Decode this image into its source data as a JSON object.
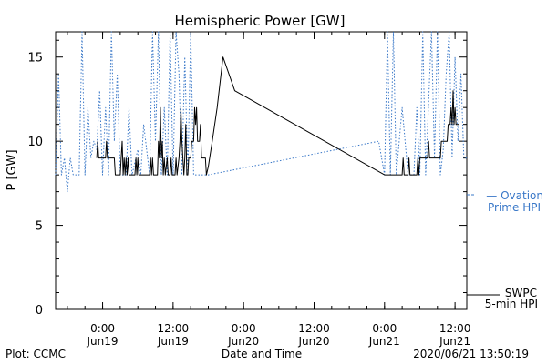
{
  "chart_data": {
    "type": "line",
    "title": "Hemispheric Power [GW]",
    "xlabel": "Date and Time",
    "ylabel": "P [GW]",
    "ylim": [
      0,
      16.5
    ],
    "xlim": [
      "2020-06-18T16:00",
      "2020-06-21T14:00"
    ],
    "y_ticks": [
      0,
      5,
      10,
      15
    ],
    "x_ticks": [
      {
        "at": "2020-06-19T00:00",
        "line1": "0:00",
        "line2": "Jun19"
      },
      {
        "at": "2020-06-19T12:00",
        "line1": "12:00",
        "line2": "Jun19"
      },
      {
        "at": "2020-06-20T00:00",
        "line1": "0:00",
        "line2": "Jun20"
      },
      {
        "at": "2020-06-20T12:00",
        "line1": "12:00",
        "line2": "Jun20"
      },
      {
        "at": "2020-06-21T00:00",
        "line1": "0:00",
        "line2": "Jun21"
      },
      {
        "at": "2020-06-21T12:00",
        "line1": "12:00",
        "line2": "Jun21"
      }
    ],
    "grid": false,
    "legend_placement": "right",
    "series": [
      {
        "name": "Ovation Prime HPI",
        "legend_line1": "— Ovation",
        "legend_line2": "Prime HPI",
        "color": "#3a78c8",
        "style": "dotted",
        "points": [
          [
            "2020-06-18T16:00",
            8.0
          ],
          [
            "2020-06-18T16:30",
            14.0
          ],
          [
            "2020-06-18T17:00",
            8.0
          ],
          [
            "2020-06-18T17:30",
            9.0
          ],
          [
            "2020-06-18T18:00",
            7.0
          ],
          [
            "2020-06-18T18:30",
            9.0
          ],
          [
            "2020-06-18T19:00",
            8.0
          ],
          [
            "2020-06-18T20:00",
            8.0
          ],
          [
            "2020-06-18T20:30",
            16.5
          ],
          [
            "2020-06-18T21:00",
            8.0
          ],
          [
            "2020-06-18T21:30",
            12.0
          ],
          [
            "2020-06-18T22:00",
            9.0
          ],
          [
            "2020-06-18T22:30",
            10.0
          ],
          [
            "2020-06-18T23:00",
            9.5
          ],
          [
            "2020-06-18T23:30",
            13.0
          ],
          [
            "2020-06-19T00:00",
            8.0
          ],
          [
            "2020-06-19T00:30",
            12.0
          ],
          [
            "2020-06-19T01:00",
            8.0
          ],
          [
            "2020-06-19T01:30",
            16.5
          ],
          [
            "2020-06-19T02:00",
            10.0
          ],
          [
            "2020-06-19T02:30",
            14.0
          ],
          [
            "2020-06-19T03:00",
            8.0
          ],
          [
            "2020-06-19T04:00",
            8.0
          ],
          [
            "2020-06-19T04:30",
            12.0
          ],
          [
            "2020-06-19T05:00",
            8.0
          ],
          [
            "2020-06-19T06:00",
            9.5
          ],
          [
            "2020-06-19T06:30",
            8.0
          ],
          [
            "2020-06-19T07:00",
            11.0
          ],
          [
            "2020-06-19T08:00",
            8.0
          ],
          [
            "2020-06-19T08:30",
            16.5
          ],
          [
            "2020-06-19T09:00",
            10.0
          ],
          [
            "2020-06-19T09:30",
            16.5
          ],
          [
            "2020-06-19T10:00",
            8.0
          ],
          [
            "2020-06-19T10:30",
            12.0
          ],
          [
            "2020-06-19T11:00",
            8.0
          ],
          [
            "2020-06-19T11:30",
            16.5
          ],
          [
            "2020-06-19T12:00",
            8.0
          ],
          [
            "2020-06-19T12:30",
            16.5
          ],
          [
            "2020-06-19T13:00",
            14.0
          ],
          [
            "2020-06-19T13:30",
            8.0
          ],
          [
            "2020-06-19T14:00",
            15.0
          ],
          [
            "2020-06-19T14:30",
            8.0
          ],
          [
            "2020-06-19T15:00",
            16.5
          ],
          [
            "2020-06-19T15:30",
            8.0
          ],
          [
            "2020-06-19T16:00",
            8.0
          ],
          [
            "2020-06-19T17:00",
            8.0
          ],
          [
            "2020-06-19T18:00",
            8.0
          ],
          [
            "2020-06-20T23:00",
            10.0
          ],
          [
            "2020-06-21T00:00",
            8.0
          ],
          [
            "2020-06-21T00:30",
            16.5
          ],
          [
            "2020-06-21T01:00",
            8.0
          ],
          [
            "2020-06-21T01:30",
            16.5
          ],
          [
            "2020-06-21T02:00",
            8.0
          ],
          [
            "2020-06-21T03:00",
            12.0
          ],
          [
            "2020-06-21T04:00",
            8.0
          ],
          [
            "2020-06-21T05:00",
            8.0
          ],
          [
            "2020-06-21T05:30",
            12.0
          ],
          [
            "2020-06-21T06:00",
            8.0
          ],
          [
            "2020-06-21T06:30",
            16.5
          ],
          [
            "2020-06-21T07:00",
            8.0
          ],
          [
            "2020-06-21T08:00",
            16.5
          ],
          [
            "2020-06-21T08:30",
            9.0
          ],
          [
            "2020-06-21T09:00",
            16.5
          ],
          [
            "2020-06-21T09:30",
            8.0
          ],
          [
            "2020-06-21T10:00",
            9.5
          ],
          [
            "2020-06-21T10:30",
            14.0
          ],
          [
            "2020-06-21T11:00",
            16.5
          ],
          [
            "2020-06-21T11:30",
            9.0
          ],
          [
            "2020-06-21T12:00",
            15.0
          ],
          [
            "2020-06-21T12:30",
            10.0
          ],
          [
            "2020-06-21T13:00",
            14.0
          ],
          [
            "2020-06-21T13:30",
            9.0
          ],
          [
            "2020-06-21T14:00",
            9.0
          ]
        ]
      },
      {
        "name": "SWPC 5-min HPI",
        "legend_line1": "SWPC",
        "legend_line2": "5-min HPI",
        "color": "#000000",
        "style": "solid",
        "points": [
          [
            "2020-06-18T23:00",
            9.0
          ],
          [
            "2020-06-18T23:10",
            10.0
          ],
          [
            "2020-06-18T23:20",
            9.0
          ],
          [
            "2020-06-19T00:30",
            9.0
          ],
          [
            "2020-06-19T00:40",
            10.0
          ],
          [
            "2020-06-19T00:50",
            9.0
          ],
          [
            "2020-06-19T02:00",
            9.0
          ],
          [
            "2020-06-19T02:10",
            8.0
          ],
          [
            "2020-06-19T03:00",
            8.0
          ],
          [
            "2020-06-19T03:10",
            9.0
          ],
          [
            "2020-06-19T03:20",
            10.0
          ],
          [
            "2020-06-19T03:30",
            8.0
          ],
          [
            "2020-06-19T03:40",
            9.0
          ],
          [
            "2020-06-19T03:50",
            8.0
          ],
          [
            "2020-06-19T04:00",
            9.0
          ],
          [
            "2020-06-19T04:10",
            8.0
          ],
          [
            "2020-06-19T04:20",
            9.0
          ],
          [
            "2020-06-19T04:30",
            8.0
          ],
          [
            "2020-06-19T05:30",
            8.0
          ],
          [
            "2020-06-19T05:40",
            9.0
          ],
          [
            "2020-06-19T05:50",
            8.0
          ],
          [
            "2020-06-19T06:00",
            9.0
          ],
          [
            "2020-06-19T06:10",
            8.0
          ],
          [
            "2020-06-19T08:00",
            8.0
          ],
          [
            "2020-06-19T08:10",
            9.0
          ],
          [
            "2020-06-19T08:20",
            8.0
          ],
          [
            "2020-06-19T08:30",
            9.0
          ],
          [
            "2020-06-19T08:40",
            8.0
          ],
          [
            "2020-06-19T09:20",
            8.0
          ],
          [
            "2020-06-19T09:30",
            10.0
          ],
          [
            "2020-06-19T09:40",
            9.0
          ],
          [
            "2020-06-19T09:50",
            12.0
          ],
          [
            "2020-06-19T10:00",
            9.0
          ],
          [
            "2020-06-19T10:10",
            10.0
          ],
          [
            "2020-06-19T10:20",
            8.0
          ],
          [
            "2020-06-19T10:30",
            9.0
          ],
          [
            "2020-06-19T10:40",
            8.0
          ],
          [
            "2020-06-19T11:00",
            9.0
          ],
          [
            "2020-06-19T11:10",
            8.0
          ],
          [
            "2020-06-19T11:30",
            8.0
          ],
          [
            "2020-06-19T11:40",
            9.0
          ],
          [
            "2020-06-19T11:50",
            8.0
          ],
          [
            "2020-06-19T12:20",
            8.0
          ],
          [
            "2020-06-19T12:30",
            9.0
          ],
          [
            "2020-06-19T12:40",
            8.0
          ],
          [
            "2020-06-19T13:00",
            9.0
          ],
          [
            "2020-06-19T13:10",
            10.0
          ],
          [
            "2020-06-19T13:20",
            12.0
          ],
          [
            "2020-06-19T13:30",
            10.0
          ],
          [
            "2020-06-19T13:40",
            9.0
          ],
          [
            "2020-06-19T13:50",
            8.0
          ],
          [
            "2020-06-19T14:00",
            9.0
          ],
          [
            "2020-06-19T14:10",
            11.0
          ],
          [
            "2020-06-19T14:20",
            8.0
          ],
          [
            "2020-06-19T14:30",
            8.0
          ],
          [
            "2020-06-19T14:40",
            9.0
          ],
          [
            "2020-06-19T15:00",
            9.0
          ],
          [
            "2020-06-19T15:10",
            10.0
          ],
          [
            "2020-06-19T15:30",
            10.0
          ],
          [
            "2020-06-19T15:40",
            12.0
          ],
          [
            "2020-06-19T15:50",
            11.0
          ],
          [
            "2020-06-19T16:00",
            12.0
          ],
          [
            "2020-06-19T16:10",
            10.0
          ],
          [
            "2020-06-19T16:30",
            10.0
          ],
          [
            "2020-06-19T16:40",
            11.0
          ],
          [
            "2020-06-19T16:50",
            9.0
          ],
          [
            "2020-06-19T17:30",
            9.0
          ],
          [
            "2020-06-19T17:40",
            8.0
          ],
          [
            "2020-06-19T18:00",
            8.5
          ],
          [
            "2020-06-19T18:40",
            10.0
          ],
          [
            "2020-06-19T19:30",
            12.0
          ],
          [
            "2020-06-19T20:30",
            15.0
          ],
          [
            "2020-06-19T22:30",
            13.0
          ],
          [
            "2020-06-21T00:00",
            8.0
          ],
          [
            "2020-06-21T03:00",
            8.0
          ],
          [
            "2020-06-21T03:10",
            9.0
          ],
          [
            "2020-06-21T03:20",
            8.0
          ],
          [
            "2020-06-21T04:00",
            8.0
          ],
          [
            "2020-06-21T04:10",
            9.0
          ],
          [
            "2020-06-21T04:20",
            8.0
          ],
          [
            "2020-06-21T05:30",
            8.0
          ],
          [
            "2020-06-21T05:40",
            9.0
          ],
          [
            "2020-06-21T05:50",
            8.0
          ],
          [
            "2020-06-21T06:00",
            9.0
          ],
          [
            "2020-06-21T07:20",
            9.0
          ],
          [
            "2020-06-21T07:30",
            10.0
          ],
          [
            "2020-06-21T07:40",
            9.0
          ],
          [
            "2020-06-21T09:30",
            9.0
          ],
          [
            "2020-06-21T09:40",
            10.0
          ],
          [
            "2020-06-21T10:40",
            10.0
          ],
          [
            "2020-06-21T10:50",
            11.0
          ],
          [
            "2020-06-21T11:10",
            11.0
          ],
          [
            "2020-06-21T11:20",
            12.0
          ],
          [
            "2020-06-21T11:30",
            11.0
          ],
          [
            "2020-06-21T11:40",
            13.0
          ],
          [
            "2020-06-21T11:50",
            11.0
          ],
          [
            "2020-06-21T12:00",
            12.0
          ],
          [
            "2020-06-21T12:10",
            11.0
          ],
          [
            "2020-06-21T12:40",
            11.0
          ]
        ]
      }
    ],
    "footer_left": "Plot: CCMC",
    "footer_right": "2020/06/21 13:50:19"
  }
}
